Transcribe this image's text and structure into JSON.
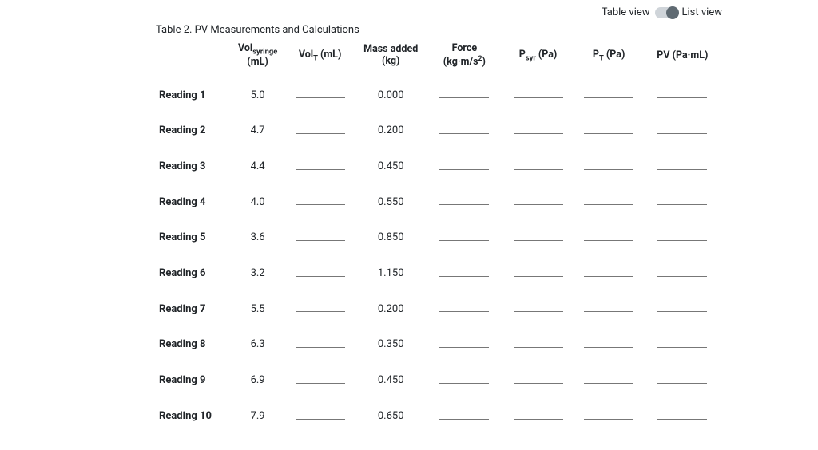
{
  "viewToggle": {
    "left_label": "Table view",
    "right_label": "List view"
  },
  "caption": "Table 2. PV Measurements and Calculations",
  "headers": {
    "reading": "",
    "vol_syringe_1": "Vol",
    "vol_syringe_sub": "syringe",
    "vol_syringe_2": "(mL)",
    "volT_1": "Vol",
    "volT_sub": "T",
    "volT_2": " (mL)",
    "mass_1": "Mass added",
    "mass_2": "(kg)",
    "force_1": "Force",
    "force_2": "(kg·m/s",
    "force_sup": "2",
    "force_3": ")",
    "psyr_1": "P",
    "psyr_sub": "syr",
    "psyr_2": " (Pa)",
    "pT_1": "P",
    "pT_sub": "T",
    "pT_2": " (Pa)",
    "pv": "PV (Pa·mL)"
  },
  "rows": [
    {
      "label": "Reading 1",
      "vol_syringe": "5.0",
      "mass": "0.000"
    },
    {
      "label": "Reading 2",
      "vol_syringe": "4.7",
      "mass": "0.200"
    },
    {
      "label": "Reading 3",
      "vol_syringe": "4.4",
      "mass": "0.450"
    },
    {
      "label": "Reading 4",
      "vol_syringe": "4.0",
      "mass": "0.550"
    },
    {
      "label": "Reading 5",
      "vol_syringe": "3.6",
      "mass": "0.850"
    },
    {
      "label": "Reading 6",
      "vol_syringe": "3.2",
      "mass": "1.150"
    },
    {
      "label": "Reading 7",
      "vol_syringe": "5.5",
      "mass": "0.200"
    },
    {
      "label": "Reading 8",
      "vol_syringe": "6.3",
      "mass": "0.350"
    },
    {
      "label": "Reading 9",
      "vol_syringe": "6.9",
      "mass": "0.450"
    },
    {
      "label": "Reading 10",
      "vol_syringe": "7.9",
      "mass": "0.650"
    }
  ],
  "blank_columns": [
    "volT",
    "force",
    "psyr",
    "pT",
    "pv"
  ]
}
